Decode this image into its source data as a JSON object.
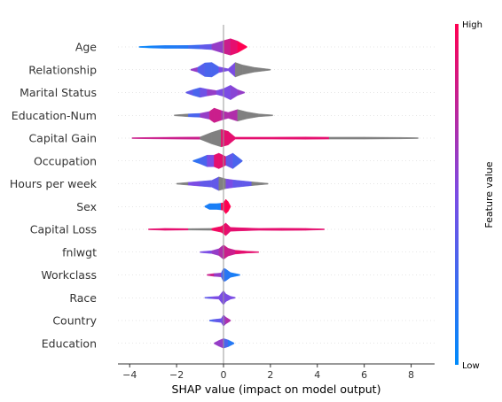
{
  "chart_data": {
    "type": "violin",
    "xlabel": "SHAP value (impact on model output)",
    "xlim": [
      -4.5,
      9.0
    ],
    "xticks": [
      -4,
      -2,
      0,
      2,
      4,
      6,
      8
    ],
    "tick_labels": [
      "−4",
      "−2",
      "0",
      "2",
      "4",
      "6",
      "8"
    ],
    "colorbar": {
      "title": "Feature value",
      "high_label": "High",
      "low_label": "Low",
      "colors": [
        "#008bfb",
        "#ff0052"
      ]
    },
    "missing_color": "#808080",
    "features": [
      {
        "name": "Age",
        "min": -3.6,
        "max": 1.0,
        "shape": [
          [
            -3.6,
            0.05,
            0.0
          ],
          [
            -3.0,
            0.12,
            0.05
          ],
          [
            -2.5,
            0.15,
            0.1
          ],
          [
            -2.0,
            0.15,
            0.12
          ],
          [
            -1.5,
            0.16,
            0.15
          ],
          [
            -1.0,
            0.2,
            0.25
          ],
          [
            -0.5,
            0.28,
            0.4
          ],
          [
            0.0,
            0.65,
            0.6
          ],
          [
            0.3,
            0.85,
            0.8
          ],
          [
            0.6,
            0.6,
            0.9
          ],
          [
            1.0,
            0.05,
            1.0
          ]
        ]
      },
      {
        "name": "Relationship",
        "min": -1.4,
        "max": 2.0,
        "shape": [
          [
            -1.4,
            0.05,
            0.9
          ],
          [
            -1.1,
            0.25,
            0.6
          ],
          [
            -0.8,
            0.7,
            0.35
          ],
          [
            -0.5,
            0.75,
            0.3
          ],
          [
            -0.2,
            0.3,
            0.3
          ],
          [
            0.2,
            0.1,
            0.5
          ],
          [
            0.5,
            0.75,
            -1
          ],
          [
            0.8,
            0.5,
            -1
          ],
          [
            1.3,
            0.25,
            -1
          ],
          [
            2.0,
            0.05,
            -1
          ]
        ]
      },
      {
        "name": "Marital Status",
        "min": -1.6,
        "max": 0.9,
        "shape": [
          [
            -1.6,
            0.05,
            0.9
          ],
          [
            -1.3,
            0.3,
            0.4
          ],
          [
            -1.0,
            0.5,
            0.3
          ],
          [
            -0.7,
            0.35,
            0.45
          ],
          [
            -0.3,
            0.2,
            0.6
          ],
          [
            0.0,
            0.4,
            0.5
          ],
          [
            0.3,
            0.75,
            0.5
          ],
          [
            0.6,
            0.3,
            0.55
          ],
          [
            0.9,
            0.05,
            0.6
          ]
        ]
      },
      {
        "name": "Education-Num",
        "min": -2.1,
        "max": 2.1,
        "shape": [
          [
            -2.1,
            0.05,
            -1
          ],
          [
            -1.5,
            0.15,
            -1
          ],
          [
            -1.0,
            0.2,
            0.3
          ],
          [
            -0.6,
            0.4,
            0.6
          ],
          [
            -0.4,
            0.75,
            0.8
          ],
          [
            -0.1,
            0.5,
            0.8
          ],
          [
            0.2,
            0.3,
            0.7
          ],
          [
            0.6,
            0.6,
            -1
          ],
          [
            1.0,
            0.35,
            -1
          ],
          [
            1.5,
            0.15,
            -1
          ],
          [
            2.1,
            0.05,
            -1
          ]
        ]
      },
      {
        "name": "Capital Gain",
        "min": -3.9,
        "max": 8.3,
        "shape": [
          [
            -3.9,
            0.05,
            0.95
          ],
          [
            -3.0,
            0.08,
            0.8
          ],
          [
            -1.0,
            0.12,
            -1
          ],
          [
            -0.5,
            0.6,
            -1
          ],
          [
            -0.1,
            0.9,
            -1
          ],
          [
            0.2,
            0.7,
            0.9
          ],
          [
            0.5,
            0.1,
            0.9
          ],
          [
            2.0,
            0.1,
            0.9
          ],
          [
            3.5,
            0.12,
            0.9
          ],
          [
            4.5,
            0.1,
            -1
          ],
          [
            6.0,
            0.1,
            -1
          ],
          [
            7.5,
            0.08,
            -1
          ],
          [
            8.3,
            0.05,
            -1
          ]
        ]
      },
      {
        "name": "Occupation",
        "min": -1.3,
        "max": 0.8,
        "shape": [
          [
            -1.3,
            0.05,
            0.2
          ],
          [
            -1.0,
            0.3,
            0.2
          ],
          [
            -0.7,
            0.6,
            0.3
          ],
          [
            -0.4,
            0.6,
            0.5
          ],
          [
            -0.2,
            0.8,
            0.9
          ],
          [
            0.1,
            0.45,
            0.9
          ],
          [
            0.4,
            0.8,
            0.4
          ],
          [
            0.8,
            0.05,
            0.3
          ]
        ]
      },
      {
        "name": "Hours per week",
        "min": -2.0,
        "max": 1.9,
        "shape": [
          [
            -2.0,
            0.05,
            -1
          ],
          [
            -1.5,
            0.15,
            -1
          ],
          [
            -1.0,
            0.25,
            0.5
          ],
          [
            -0.5,
            0.35,
            0.4
          ],
          [
            -0.2,
            0.7,
            -1
          ],
          [
            0.1,
            0.5,
            -1
          ],
          [
            0.4,
            0.4,
            0.5
          ],
          [
            0.8,
            0.3,
            0.4
          ],
          [
            1.2,
            0.2,
            -1
          ],
          [
            1.9,
            0.05,
            -1
          ]
        ]
      },
      {
        "name": "Sex",
        "min": -0.8,
        "max": 0.3,
        "shape": [
          [
            -0.8,
            0.05,
            0.1
          ],
          [
            -0.6,
            0.3,
            0.1
          ],
          [
            -0.3,
            0.3,
            0.1
          ],
          [
            -0.1,
            0.35,
            0.1
          ],
          [
            0.0,
            0.4,
            1.0
          ],
          [
            0.1,
            0.75,
            1.0
          ],
          [
            0.2,
            0.5,
            1.0
          ],
          [
            0.3,
            0.05,
            1.0
          ]
        ]
      },
      {
        "name": "Capital Loss",
        "min": -3.2,
        "max": 4.3,
        "shape": [
          [
            -3.2,
            0.05,
            0.9
          ],
          [
            -2.5,
            0.1,
            0.9
          ],
          [
            -1.5,
            0.08,
            -1
          ],
          [
            -0.5,
            0.1,
            -1
          ],
          [
            -0.1,
            0.3,
            0.95
          ],
          [
            0.1,
            0.65,
            0.95
          ],
          [
            0.3,
            0.2,
            0.9
          ],
          [
            1.5,
            0.1,
            -1
          ],
          [
            2.5,
            0.12,
            0.9
          ],
          [
            3.5,
            0.1,
            0.9
          ],
          [
            4.3,
            0.05,
            -1
          ]
        ]
      },
      {
        "name": "fnlwgt",
        "min": -1.0,
        "max": 1.5,
        "shape": [
          [
            -1.0,
            0.05,
            0.4
          ],
          [
            -0.5,
            0.15,
            0.5
          ],
          [
            -0.2,
            0.35,
            0.6
          ],
          [
            0.0,
            0.75,
            0.7
          ],
          [
            0.2,
            0.4,
            0.8
          ],
          [
            0.5,
            0.2,
            0.8
          ],
          [
            1.0,
            0.1,
            0.9
          ],
          [
            1.5,
            0.05,
            0.9
          ]
        ]
      },
      {
        "name": "Workclass",
        "min": -0.7,
        "max": 0.7,
        "shape": [
          [
            -0.7,
            0.05,
            0.9
          ],
          [
            -0.4,
            0.15,
            0.8
          ],
          [
            -0.1,
            0.2,
            0.6
          ],
          [
            0.0,
            0.7,
            0.3
          ],
          [
            0.1,
            0.6,
            0.2
          ],
          [
            0.3,
            0.25,
            0.15
          ],
          [
            0.7,
            0.05,
            0.1
          ]
        ]
      },
      {
        "name": "Race",
        "min": -0.8,
        "max": 0.5,
        "shape": [
          [
            -0.8,
            0.05,
            0.4
          ],
          [
            -0.5,
            0.1,
            0.4
          ],
          [
            -0.2,
            0.15,
            0.5
          ],
          [
            0.0,
            0.75,
            0.5
          ],
          [
            0.1,
            0.4,
            -1
          ],
          [
            0.3,
            0.15,
            0.5
          ],
          [
            0.5,
            0.05,
            0.5
          ]
        ]
      },
      {
        "name": "Country",
        "min": -0.6,
        "max": 0.3,
        "shape": [
          [
            -0.6,
            0.05,
            0.3
          ],
          [
            -0.4,
            0.12,
            0.3
          ],
          [
            -0.1,
            0.2,
            0.4
          ],
          [
            0.0,
            0.6,
            0.5
          ],
          [
            0.1,
            0.35,
            0.6
          ],
          [
            0.3,
            0.05,
            0.7
          ]
        ]
      },
      {
        "name": "Education",
        "min": -0.4,
        "max": 0.45,
        "shape": [
          [
            -0.4,
            0.05,
            0.5
          ],
          [
            -0.2,
            0.3,
            0.6
          ],
          [
            0.0,
            0.5,
            0.6
          ],
          [
            0.2,
            0.35,
            0.3
          ],
          [
            0.45,
            0.05,
            0.15
          ]
        ]
      }
    ]
  }
}
